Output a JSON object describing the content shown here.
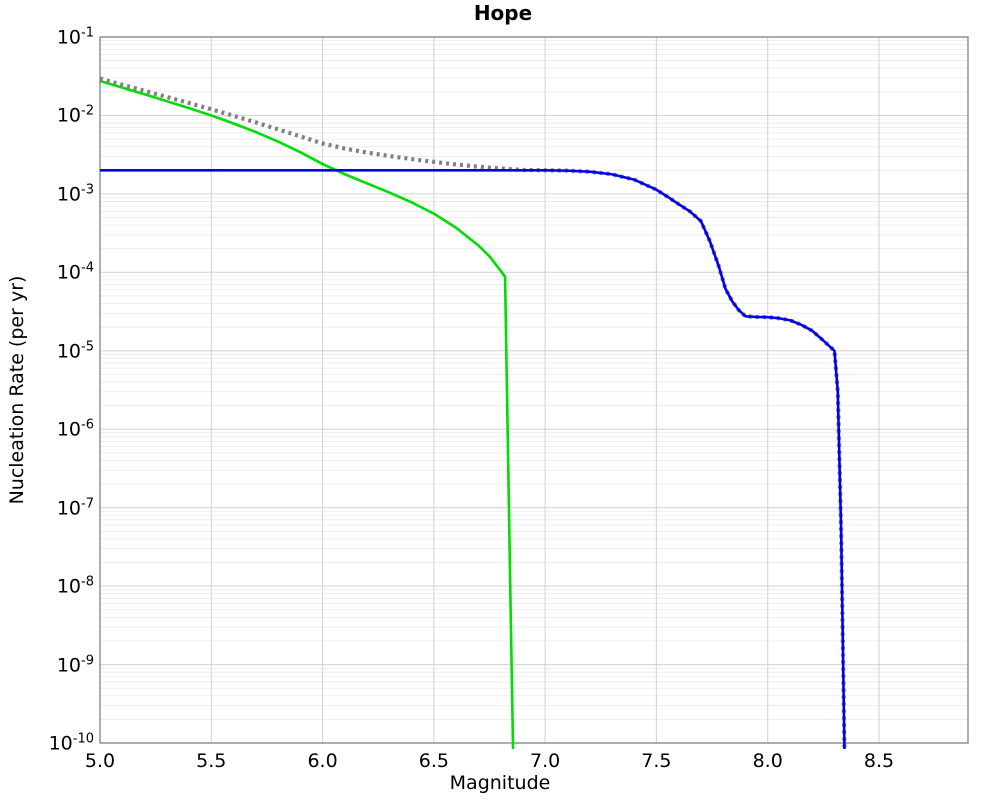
{
  "figure": {
    "title": "Hope"
  },
  "chart_data": {
    "type": "line",
    "title": "Hope",
    "xlabel": "Magnitude",
    "ylabel": "Nucleation Rate (per yr)",
    "legend": false,
    "grid": {
      "show": true,
      "major_color": "#d5d5d5",
      "minor_color": "#ebebeb"
    },
    "frame_color": "#8a8a8a",
    "background_color": "#ffffff",
    "x_axis": {
      "scale": "linear",
      "min": 5.0,
      "max": 8.9,
      "tick_values": [
        5.0,
        5.5,
        6.0,
        6.5,
        7.0,
        7.5,
        8.0,
        8.5
      ],
      "tick_labels": [
        "5.0",
        "5.5",
        "6.0",
        "6.5",
        "7.0",
        "7.5",
        "8.0",
        "8.5"
      ]
    },
    "y_axis": {
      "scale": "log",
      "min": 1e-10,
      "max": 0.1,
      "tick_base": "10",
      "tick_exponents": [
        -1,
        -2,
        -3,
        -4,
        -5,
        -6,
        -7,
        -8,
        -9,
        -10
      ],
      "minor_grid_mantissas": [
        2,
        3,
        4,
        5,
        6,
        7,
        8,
        9
      ]
    },
    "series": [
      {
        "name": "green-curve",
        "color": "#00dd00",
        "style": "solid",
        "width": 2.6,
        "points": [
          [
            5.0,
            0.0275
          ],
          [
            5.1,
            0.0226
          ],
          [
            5.2,
            0.0186
          ],
          [
            5.3,
            0.0152
          ],
          [
            5.4,
            0.0124
          ],
          [
            5.5,
            0.01
          ],
          [
            5.6,
            0.0079
          ],
          [
            5.7,
            0.00615
          ],
          [
            5.8,
            0.00465
          ],
          [
            5.9,
            0.0034
          ],
          [
            6.0,
            0.0024
          ],
          [
            6.1,
            0.00178
          ],
          [
            6.2,
            0.00136
          ],
          [
            6.3,
            0.00104
          ],
          [
            6.4,
            0.00078
          ],
          [
            6.5,
            0.00056
          ],
          [
            6.6,
            0.00037
          ],
          [
            6.7,
            0.00022
          ],
          [
            6.75,
            0.00016
          ],
          [
            6.8,
            0.000105
          ],
          [
            6.82,
            8.8e-05
          ],
          [
            6.832,
            8e-07
          ],
          [
            6.845,
            5e-09
          ],
          [
            6.856,
            8e-11
          ]
        ]
      },
      {
        "name": "total-dotted-curve",
        "color": "#808080",
        "style": "dotted",
        "width": 4.2,
        "points": [
          [
            5.0,
            0.0295
          ],
          [
            5.1,
            0.0246
          ],
          [
            5.2,
            0.0206
          ],
          [
            5.3,
            0.0172
          ],
          [
            5.4,
            0.0144
          ],
          [
            5.5,
            0.012
          ],
          [
            5.6,
            0.0099
          ],
          [
            5.7,
            0.00815
          ],
          [
            5.8,
            0.00665
          ],
          [
            5.9,
            0.0054
          ],
          [
            6.0,
            0.0044
          ],
          [
            6.1,
            0.00378
          ],
          [
            6.2,
            0.00336
          ],
          [
            6.3,
            0.00304
          ],
          [
            6.4,
            0.00278
          ],
          [
            6.5,
            0.00256
          ],
          [
            6.6,
            0.00237
          ],
          [
            6.7,
            0.00222
          ],
          [
            6.8,
            0.00211
          ],
          [
            6.85,
            0.00206
          ],
          [
            6.9,
            0.00202
          ],
          [
            7.0,
            0.002
          ],
          [
            7.1,
            0.00198
          ],
          [
            7.2,
            0.00192
          ],
          [
            7.3,
            0.00178
          ],
          [
            7.4,
            0.00152
          ],
          [
            7.5,
            0.00113
          ],
          [
            7.55,
            0.00092
          ],
          [
            7.6,
            0.00074
          ],
          [
            7.65,
            0.0006
          ],
          [
            7.7,
            0.00045
          ],
          [
            7.74,
            0.00025
          ],
          [
            7.78,
            0.00012
          ],
          [
            7.81,
            6.2e-05
          ],
          [
            7.84,
            4.3e-05
          ],
          [
            7.87,
            3.3e-05
          ],
          [
            7.9,
            2.75e-05
          ],
          [
            7.95,
            2.7e-05
          ],
          [
            8.0,
            2.68e-05
          ],
          [
            8.05,
            2.6e-05
          ],
          [
            8.1,
            2.45e-05
          ],
          [
            8.15,
            2.15e-05
          ],
          [
            8.2,
            1.8e-05
          ],
          [
            8.25,
            1.35e-05
          ],
          [
            8.3,
            1e-05
          ],
          [
            8.315,
            3e-06
          ],
          [
            8.33,
            5e-08
          ],
          [
            8.345,
            8e-11
          ]
        ]
      },
      {
        "name": "blue-curve",
        "color": "#0000ee",
        "style": "solid",
        "width": 2.6,
        "points": [
          [
            5.0,
            0.002
          ],
          [
            6.0,
            0.002
          ],
          [
            6.5,
            0.002
          ],
          [
            7.0,
            0.002
          ],
          [
            7.1,
            0.00198
          ],
          [
            7.2,
            0.00192
          ],
          [
            7.3,
            0.00178
          ],
          [
            7.4,
            0.00152
          ],
          [
            7.5,
            0.00113
          ],
          [
            7.55,
            0.00092
          ],
          [
            7.6,
            0.00074
          ],
          [
            7.65,
            0.0006
          ],
          [
            7.7,
            0.00045
          ],
          [
            7.74,
            0.00025
          ],
          [
            7.78,
            0.00012
          ],
          [
            7.81,
            6.2e-05
          ],
          [
            7.84,
            4.3e-05
          ],
          [
            7.87,
            3.3e-05
          ],
          [
            7.9,
            2.75e-05
          ],
          [
            7.95,
            2.7e-05
          ],
          [
            8.0,
            2.68e-05
          ],
          [
            8.05,
            2.6e-05
          ],
          [
            8.1,
            2.45e-05
          ],
          [
            8.15,
            2.15e-05
          ],
          [
            8.2,
            1.8e-05
          ],
          [
            8.25,
            1.35e-05
          ],
          [
            8.3,
            1e-05
          ],
          [
            8.315,
            3e-06
          ],
          [
            8.33,
            5e-08
          ],
          [
            8.345,
            8e-11
          ]
        ]
      }
    ]
  }
}
